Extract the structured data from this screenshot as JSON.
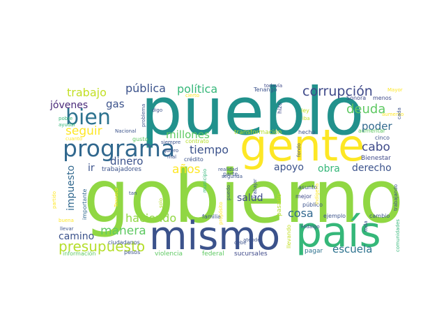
{
  "words": [
    {
      "text": "gobierno",
      "color": "#90d743",
      "weight": 100
    },
    {
      "text": "pueblo",
      "color": "#21918c",
      "weight": 92
    },
    {
      "text": "gente",
      "color": "#fde725",
      "weight": 78
    },
    {
      "text": "país",
      "color": "#35b779",
      "weight": 74
    },
    {
      "text": "mismo",
      "color": "#3b528b",
      "weight": 66
    },
    {
      "text": "programa",
      "color": "#31688e",
      "weight": 48
    },
    {
      "text": "bien",
      "color": "#2c728e",
      "weight": 40
    },
    {
      "text": "presupuesto",
      "color": "#b5de2b",
      "weight": 34
    },
    {
      "text": "corrupción",
      "color": "#3e4989",
      "weight": 30
    },
    {
      "text": "deuda",
      "color": "#5ec962",
      "weight": 29
    },
    {
      "text": "seguir",
      "color": "#fde725",
      "weight": 28
    },
    {
      "text": "manera",
      "color": "#5ec962",
      "weight": 28
    },
    {
      "text": "haciendo",
      "color": "#90d743",
      "weight": 27
    },
    {
      "text": "trabajo",
      "color": "#c2df23",
      "weight": 26
    },
    {
      "text": "política",
      "color": "#35b779",
      "weight": 26
    },
    {
      "text": "pública",
      "color": "#3b528b",
      "weight": 26
    },
    {
      "text": "cosa",
      "color": "#31688e",
      "weight": 26
    },
    {
      "text": "años",
      "color": "#fde725",
      "weight": 26
    },
    {
      "text": "tiempo",
      "color": "#3b528b",
      "weight": 26
    },
    {
      "text": "cabo",
      "color": "#3e4989",
      "weight": 26
    },
    {
      "text": "escuela",
      "color": "#2c728e",
      "weight": 24
    },
    {
      "text": "millones",
      "color": "#5ec962",
      "weight": 24
    },
    {
      "text": "dinero",
      "color": "#3b528b",
      "weight": 24
    },
    {
      "text": "poder",
      "color": "#31688e",
      "weight": 24
    },
    {
      "text": "jóvenes",
      "color": "#482878",
      "weight": 22
    },
    {
      "text": "gas",
      "color": "#3b528b",
      "weight": 22
    },
    {
      "text": "salud",
      "color": "#3e4989",
      "weight": 22
    },
    {
      "text": "camino",
      "color": "#3b528b",
      "weight": 22
    },
    {
      "text": "apoyo",
      "color": "#3b528b",
      "weight": 22
    },
    {
      "text": "obra",
      "color": "#35b779",
      "weight": 22
    },
    {
      "text": "derecho",
      "color": "#3b528b",
      "weight": 22
    },
    {
      "text": "impuesto",
      "color": "#31688e",
      "weight": 20
    },
    {
      "text": "ir",
      "color": "#3b528b",
      "weight": 20
    },
    {
      "text": "trabajadores",
      "color": "#3b528b",
      "weight": 12
    },
    {
      "text": "transformación",
      "color": "#b5de2b",
      "weight": 12
    },
    {
      "text": "violencia",
      "color": "#5ec962",
      "weight": 12
    },
    {
      "text": "federal",
      "color": "#5ec962",
      "weight": 12
    },
    {
      "text": "sucursales",
      "color": "#3e4989",
      "weight": 12
    },
    {
      "text": "pagar",
      "color": "#2c728e",
      "weight": 11
    },
    {
      "text": "Bienestar",
      "color": "#3e4989",
      "weight": 11
    },
    {
      "text": "importante",
      "color": "#31688e",
      "weight": 11
    },
    {
      "text": "ciudadanos",
      "color": "#3b528b",
      "weight": 11
    },
    {
      "text": "información",
      "color": "#5ec962",
      "weight": 11
    },
    {
      "text": "pesos",
      "color": "#3b528b",
      "weight": 11
    },
    {
      "text": "llevando",
      "color": "#c2df23",
      "weight": 11
    },
    {
      "text": "pasado",
      "color": "#b5de2b",
      "weight": 11
    },
    {
      "text": "familia",
      "color": "#3b528b",
      "weight": 10
    },
    {
      "text": "parte",
      "color": "#3b528b",
      "weight": 10
    },
    {
      "text": "ejemplo",
      "color": "#3b528b",
      "weight": 10
    },
    {
      "text": "cambio",
      "color": "#3b528b",
      "weight": 10
    },
    {
      "text": "mejor",
      "color": "#3e4989",
      "weight": 10
    },
    {
      "text": "público",
      "color": "#3b528b",
      "weight": 10
    },
    {
      "text": "asunto",
      "color": "#3b528b",
      "weight": 10
    },
    {
      "text": "crédito",
      "color": "#3b528b",
      "weight": 10
    },
    {
      "text": "hecho",
      "color": "#3b528b",
      "weight": 10
    },
    {
      "text": "cinco",
      "color": "#3b528b",
      "weight": 10
    },
    {
      "text": "Tenango",
      "color": "#3b528b",
      "weight": 9
    },
    {
      "text": "Sonora",
      "color": "#3e4989",
      "weight": 9
    },
    {
      "text": "menos",
      "color": "#3e4989",
      "weight": 9
    },
    {
      "text": "aumentar",
      "color": "#5ec962",
      "weight": 9
    },
    {
      "text": "contrato",
      "color": "#b5de2b",
      "weight": 9
    },
    {
      "text": "gusto",
      "color": "#5ec962",
      "weight": 9
    },
    {
      "text": "siempre",
      "color": "#3b528b",
      "weight": 8
    },
    {
      "text": "quiero",
      "color": "#3b528b",
      "weight": 8
    },
    {
      "text": "mal",
      "color": "#3b528b",
      "weight": 8
    },
    {
      "text": "hizo",
      "color": "#3e4989",
      "weight": 8
    },
    {
      "text": "ley",
      "color": "#c2df23",
      "weight": 8
    },
    {
      "text": "iba",
      "color": "#c2df23",
      "weight": 8
    },
    {
      "text": "fondo",
      "color": "#3b528b",
      "weight": 8
    },
    {
      "text": "todavía",
      "color": "#3e4989",
      "weight": 8
    },
    {
      "text": "digo",
      "color": "#3b528b",
      "weight": 8
    },
    {
      "text": "problema",
      "color": "#3b528b",
      "weight": 8
    },
    {
      "text": "pobre",
      "color": "#35b779",
      "weight": 8
    },
    {
      "text": "ayudar",
      "color": "#35b779",
      "weight": 8
    },
    {
      "text": "cuanto",
      "color": "#fde725",
      "weight": 8
    },
    {
      "text": "Nacional",
      "color": "#3b528b",
      "weight": 8
    },
    {
      "text": "segunda",
      "color": "#3b528b",
      "weight": 8
    },
    {
      "text": "realidad",
      "color": "#3b528b",
      "weight": 8
    },
    {
      "text": "tan",
      "color": "#3b528b",
      "weight": 8
    },
    {
      "text": "solo",
      "color": "#b5de2b",
      "weight": 8
    },
    {
      "text": "propósito",
      "color": "#fde725",
      "weight": 8
    },
    {
      "text": "puedo",
      "color": "#3b528b",
      "weight": 8
    },
    {
      "text": "trabajar",
      "color": "#3b528b",
      "weight": 8
    },
    {
      "text": "debe",
      "color": "#3b528b",
      "weight": 8
    },
    {
      "text": "atender",
      "color": "#3b528b",
      "weight": 8
    },
    {
      "text": "Hidalgo",
      "color": "#3b528b",
      "weight": 8
    },
    {
      "text": "indígena",
      "color": "#fde725",
      "weight": 8
    },
    {
      "text": "trabajando",
      "color": "#3b528b",
      "weight": 8
    },
    {
      "text": "comunidades",
      "color": "#35b779",
      "weight": 8
    },
    {
      "text": "toda",
      "color": "#3b528b",
      "weight": 8
    },
    {
      "text": "Mayor",
      "color": "#fde725",
      "weight": 8
    },
    {
      "text": "aumento",
      "color": "#fde725",
      "weight": 8
    },
    {
      "text": "cada",
      "color": "#3b528b",
      "weight": 8
    },
    {
      "text": "cierto",
      "color": "#fde725",
      "weight": 8
    },
    {
      "text": "municipio",
      "color": "#35b779",
      "weight": 8
    },
    {
      "text": "partido",
      "color": "#fde725",
      "weight": 8
    },
    {
      "text": "Texcoco",
      "color": "#fde725",
      "weight": 8
    },
    {
      "text": "buena",
      "color": "#fde725",
      "weight": 8
    },
    {
      "text": "llevar",
      "color": "#3b528b",
      "weight": 8
    }
  ]
}
